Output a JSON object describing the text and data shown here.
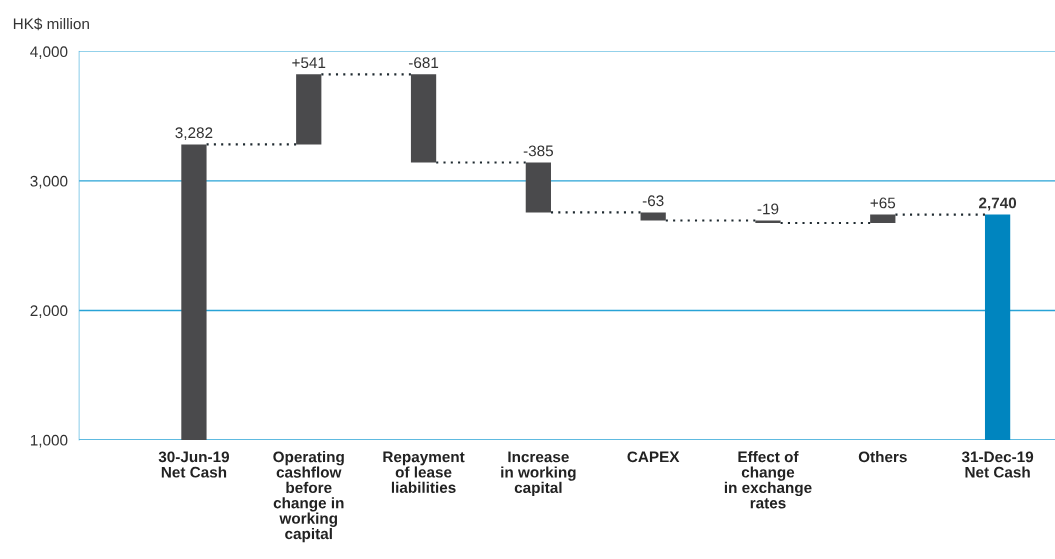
{
  "chart_data": {
    "type": "bar",
    "ylabel": "HK$ million",
    "categories": [
      "30-Jun-19\nNet Cash",
      "Operating\ncashflow\nbefore\nchange in\nworking\ncapital",
      "Repayment\nof lease\nliabilities",
      "Increase\nin working\ncapital",
      "CAPEX",
      "Effect of\nchange\nin exchange\nrates",
      "Others",
      "31-Dec-19\nNet Cash"
    ],
    "values": [
      3282,
      541,
      -681,
      -385,
      -63,
      -19,
      65,
      2740
    ],
    "base": [
      null,
      3282,
      3823,
      3142,
      2757,
      2694,
      2675,
      null
    ],
    "value_labels": [
      "3,282",
      "+541",
      "-681",
      "-385",
      "-63",
      "-19",
      "+65",
      "2,740"
    ],
    "colors": [
      "#4a4a4c",
      "#4a4a4c",
      "#4a4a4c",
      "#4a4a4c",
      "#4a4a4c",
      "#4a4a4c",
      "#4a4a4c",
      "#0085bf"
    ],
    "ylim": [
      1000,
      4000
    ],
    "yticks": [
      {
        "value": 1000,
        "label": "1,000"
      },
      {
        "value": 2000,
        "label": "2,000"
      },
      {
        "value": 3000,
        "label": "3,000"
      },
      {
        "value": 4000,
        "label": "4,000"
      }
    ],
    "grid": "y",
    "legend": false
  }
}
